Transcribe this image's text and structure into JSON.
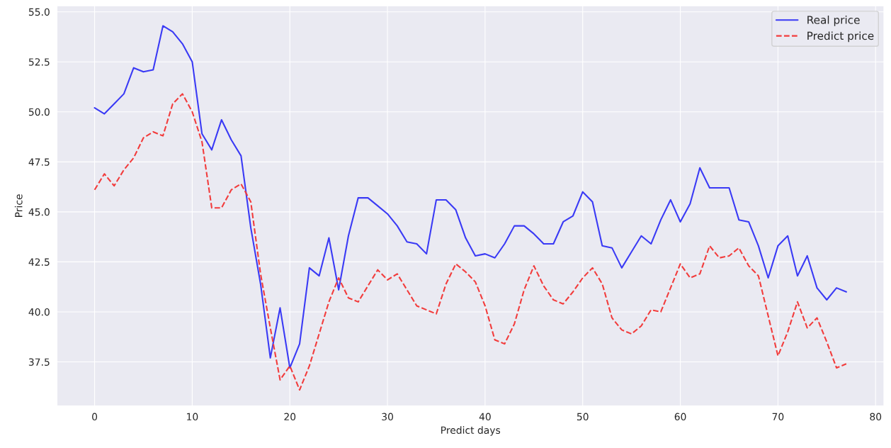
{
  "chart_data": {
    "type": "line",
    "xlabel": "Predict days",
    "ylabel": "Price",
    "xlim": [
      -3.85,
      80.85
    ],
    "ylim": [
      35.3,
      55.3
    ],
    "xticks": [
      0,
      10,
      20,
      30,
      40,
      50,
      60,
      70,
      80
    ],
    "yticks": [
      37.5,
      {
        "value": 40,
        "label": "40.0"
      },
      42.5,
      {
        "value": 45,
        "label": "45.0"
      },
      47.5,
      {
        "value": 50,
        "label": "50.0"
      },
      52.5,
      {
        "value": 55,
        "label": "55.0"
      }
    ],
    "grid": true,
    "legend": "top right",
    "x": [
      0,
      1,
      2,
      3,
      4,
      5,
      6,
      7,
      8,
      9,
      10,
      11,
      12,
      13,
      14,
      15,
      16,
      17,
      18,
      19,
      20,
      21,
      22,
      23,
      24,
      25,
      26,
      27,
      28,
      29,
      30,
      31,
      32,
      33,
      34,
      35,
      36,
      37,
      38,
      39,
      40,
      41,
      42,
      43,
      44,
      45,
      46,
      47,
      48,
      49,
      50,
      51,
      52,
      53,
      54,
      55,
      56,
      57,
      58,
      59,
      60,
      61,
      62,
      63,
      64,
      65,
      66,
      67,
      68,
      69,
      70,
      71,
      72,
      73,
      74,
      75,
      76,
      77
    ],
    "series": [
      {
        "name": "Real price",
        "color": "#3a3af5",
        "line_style": "solid",
        "values": [
          50.2,
          49.9,
          50.4,
          50.9,
          52.2,
          52.0,
          52.1,
          54.3,
          54.0,
          53.4,
          52.5,
          48.9,
          48.1,
          49.6,
          48.6,
          47.8,
          44.2,
          41.4,
          37.7,
          40.2,
          37.2,
          38.4,
          42.2,
          41.8,
          43.7,
          41.1,
          43.8,
          45.7,
          45.7,
          45.3,
          44.9,
          44.3,
          43.5,
          43.4,
          42.9,
          45.6,
          45.6,
          45.1,
          43.7,
          42.8,
          42.9,
          42.7,
          43.4,
          44.3,
          44.3,
          43.9,
          43.4,
          43.4,
          44.5,
          44.8,
          46.0,
          45.5,
          43.3,
          43.2,
          42.2,
          43.0,
          43.8,
          43.4,
          44.6,
          45.6,
          44.5,
          45.4,
          47.2,
          46.2,
          46.2,
          46.2,
          44.6,
          44.5,
          43.3,
          41.7,
          43.3,
          43.8,
          41.8,
          42.8,
          41.2,
          40.6,
          41.2,
          41.0
        ]
      },
      {
        "name": "Predict price",
        "color": "#f23c3c",
        "line_style": "dashed",
        "values": [
          46.1,
          46.9,
          46.3,
          47.1,
          47.7,
          48.7,
          49.0,
          48.8,
          50.4,
          50.9,
          50.0,
          48.5,
          45.2,
          45.2,
          46.1,
          46.4,
          45.5,
          41.9,
          39.2,
          36.6,
          37.3,
          36.1,
          37.3,
          38.9,
          40.5,
          41.7,
          40.7,
          40.5,
          41.3,
          42.1,
          41.6,
          41.9,
          41.1,
          40.3,
          40.1,
          39.9,
          41.4,
          42.4,
          42.0,
          41.5,
          40.3,
          38.6,
          38.4,
          39.4,
          41.1,
          42.3,
          41.3,
          40.6,
          40.4,
          41.0,
          41.7,
          42.2,
          41.4,
          39.7,
          39.1,
          38.9,
          39.3,
          40.1,
          40.0,
          41.2,
          42.4,
          41.7,
          41.9,
          43.3,
          42.7,
          42.8,
          43.2,
          42.3,
          41.8,
          39.8,
          37.8,
          39.0,
          40.5,
          39.2,
          39.7,
          38.5,
          37.2,
          37.4
        ]
      }
    ]
  }
}
